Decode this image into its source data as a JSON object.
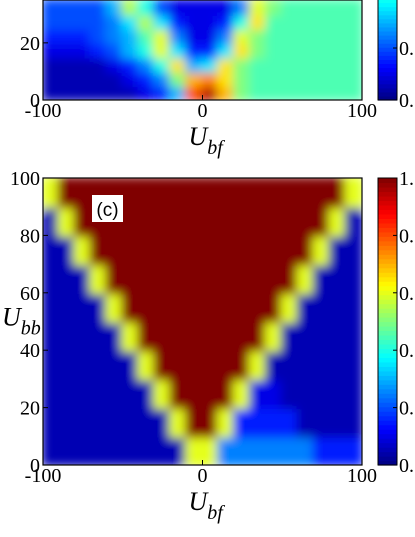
{
  "chart_data": [
    {
      "type": "heatmap",
      "colormap": "jet",
      "clim": [
        0,
        1
      ],
      "xlabel": {
        "main": "U",
        "sub": "bf"
      },
      "xlim": [
        -100,
        100
      ],
      "xticks": [
        -100,
        0,
        100
      ],
      "ylim": [
        0,
        35
      ],
      "yticks": [
        0,
        20
      ],
      "cticks": [
        {
          "value": 0.2,
          "label": "0."
        },
        {
          "value": 0,
          "label": "0."
        }
      ],
      "x": [
        -95,
        -85,
        -75,
        -65,
        -55,
        -45,
        -35,
        -25,
        -15,
        -5,
        5,
        15,
        25,
        35,
        45,
        55,
        65,
        75,
        85,
        95
      ],
      "y": [
        2.5,
        7.5,
        12.5,
        17.5,
        22.5,
        27.5,
        32.5
      ],
      "z": [
        [
          0.05,
          0.05,
          0.05,
          0.05,
          0.05,
          0.05,
          0.1,
          0.15,
          0.3,
          0.8,
          0.95,
          0.7,
          0.5,
          0.45,
          0.45,
          0.45,
          0.45,
          0.45,
          0.45,
          0.45
        ],
        [
          0.05,
          0.05,
          0.05,
          0.05,
          0.05,
          0.1,
          0.15,
          0.25,
          0.5,
          0.7,
          0.75,
          0.65,
          0.5,
          0.45,
          0.45,
          0.45,
          0.45,
          0.45,
          0.45,
          0.45
        ],
        [
          0.05,
          0.05,
          0.05,
          0.05,
          0.1,
          0.15,
          0.25,
          0.4,
          0.65,
          0.3,
          0.35,
          0.65,
          0.5,
          0.45,
          0.45,
          0.45,
          0.45,
          0.45,
          0.45,
          0.45
        ],
        [
          0.1,
          0.1,
          0.1,
          0.15,
          0.2,
          0.3,
          0.4,
          0.6,
          0.35,
          0.15,
          0.15,
          0.35,
          0.65,
          0.5,
          0.45,
          0.45,
          0.45,
          0.45,
          0.45,
          0.45
        ],
        [
          0.15,
          0.15,
          0.15,
          0.2,
          0.25,
          0.3,
          0.45,
          0.6,
          0.25,
          0.1,
          0.1,
          0.25,
          0.6,
          0.5,
          0.45,
          0.45,
          0.45,
          0.45,
          0.45,
          0.45
        ],
        [
          0.2,
          0.2,
          0.2,
          0.2,
          0.25,
          0.35,
          0.55,
          0.35,
          0.15,
          0.1,
          0.1,
          0.15,
          0.4,
          0.65,
          0.45,
          0.45,
          0.45,
          0.45,
          0.45,
          0.45
        ],
        [
          0.2,
          0.2,
          0.2,
          0.2,
          0.3,
          0.55,
          0.4,
          0.2,
          0.1,
          0.1,
          0.1,
          0.1,
          0.25,
          0.6,
          0.5,
          0.45,
          0.45,
          0.45,
          0.45,
          0.45
        ]
      ]
    },
    {
      "type": "heatmap",
      "colormap": "jet",
      "clim": [
        0,
        1
      ],
      "panel_label": "(c)",
      "xlabel": {
        "main": "U",
        "sub": "bf"
      },
      "ylabel": {
        "main": "U",
        "sub": "bb"
      },
      "xlim": [
        -100,
        100
      ],
      "xticks": [
        -100,
        0,
        100
      ],
      "ylim": [
        0,
        100
      ],
      "yticks": [
        0,
        20,
        40,
        60,
        80,
        100
      ],
      "cticks": [
        {
          "value": 1.0,
          "label": "1."
        },
        {
          "value": 0.8,
          "label": "0."
        },
        {
          "value": 0.6,
          "label": "0."
        },
        {
          "value": 0.4,
          "label": "0."
        },
        {
          "value": 0.2,
          "label": "0."
        },
        {
          "value": 0,
          "label": "0."
        }
      ],
      "x": [
        -95,
        -85,
        -75,
        -65,
        -55,
        -45,
        -35,
        -25,
        -15,
        -5,
        5,
        15,
        25,
        35,
        45,
        55,
        65,
        75,
        85,
        95
      ],
      "y": [
        5,
        15,
        25,
        35,
        45,
        55,
        65,
        75,
        85,
        95
      ],
      "z": [
        [
          0.05,
          0.05,
          0.05,
          0.05,
          0.05,
          0.05,
          0.05,
          0.05,
          0.05,
          0.6,
          0.6,
          0.25,
          0.25,
          0.25,
          0.25,
          0.25,
          0.25,
          0.15,
          0.15,
          0.15
        ],
        [
          0.05,
          0.05,
          0.05,
          0.05,
          0.05,
          0.05,
          0.05,
          0.05,
          0.6,
          1,
          1,
          0.6,
          0.15,
          0.15,
          0.15,
          0.15,
          0.05,
          0.05,
          0.05,
          0.05
        ],
        [
          0.05,
          0.05,
          0.05,
          0.05,
          0.05,
          0.05,
          0.05,
          0.6,
          1,
          1,
          1,
          1,
          0.6,
          0.1,
          0.1,
          0.05,
          0.05,
          0.05,
          0.05,
          0.05
        ],
        [
          0.05,
          0.05,
          0.05,
          0.05,
          0.05,
          0.05,
          0.6,
          1,
          1,
          1,
          1,
          1,
          1,
          0.6,
          0.05,
          0.05,
          0.05,
          0.05,
          0.05,
          0.05
        ],
        [
          0.05,
          0.05,
          0.05,
          0.05,
          0.05,
          0.6,
          1,
          1,
          1,
          1,
          1,
          1,
          1,
          1,
          0.6,
          0.05,
          0.05,
          0.05,
          0.05,
          0.05
        ],
        [
          0.05,
          0.05,
          0.05,
          0.05,
          0.6,
          1,
          1,
          1,
          1,
          1,
          1,
          1,
          1,
          1,
          1,
          0.6,
          0.05,
          0.05,
          0.05,
          0.05
        ],
        [
          0.05,
          0.05,
          0.05,
          0.6,
          1,
          1,
          1,
          1,
          1,
          1,
          1,
          1,
          1,
          1,
          1,
          1,
          0.6,
          0.05,
          0.05,
          0.05
        ],
        [
          0.05,
          0.05,
          0.6,
          1,
          1,
          1,
          1,
          1,
          1,
          1,
          1,
          1,
          1,
          1,
          1,
          1,
          1,
          0.6,
          0.05,
          0.05
        ],
        [
          0.05,
          0.6,
          1,
          1,
          1,
          1,
          1,
          1,
          1,
          1,
          1,
          1,
          1,
          1,
          1,
          1,
          1,
          1,
          0.6,
          0.05
        ],
        [
          0.6,
          1,
          1,
          1,
          1,
          1,
          1,
          1,
          1,
          1,
          1,
          1,
          1,
          1,
          1,
          1,
          1,
          1,
          1,
          0.6
        ]
      ]
    }
  ]
}
